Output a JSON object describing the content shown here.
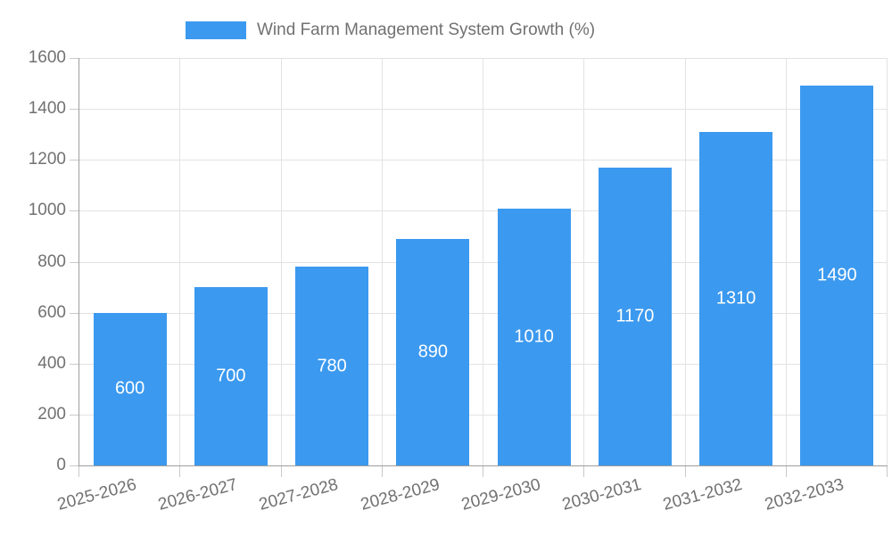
{
  "chart_data": {
    "type": "bar",
    "title": "Wind Farm Management System Growth (%)",
    "categories": [
      "2025-2026",
      "2026-2027",
      "2027-2028",
      "2028-2029",
      "2029-2030",
      "2030-2031",
      "2031-2032",
      "2032-2033"
    ],
    "values": [
      600,
      700,
      780,
      890,
      1010,
      1170,
      1310,
      1490
    ],
    "value_labels": [
      "600",
      "700",
      "780",
      "890",
      "1010",
      "1170",
      "1310",
      "1490"
    ],
    "xlabel": "",
    "ylabel": "",
    "ylim": [
      0,
      1600
    ],
    "yticks": [
      0,
      200,
      400,
      600,
      800,
      1000,
      1200,
      1400,
      1600
    ],
    "grid": true,
    "legend_position": "top",
    "colors": {
      "bar": "#3B99EF",
      "value_label": "#FFFFFF",
      "grid": "#E3E3E3",
      "axis": "#9E9E9E",
      "tick": "#C9C9C9",
      "text": "#717171",
      "background": "#FFFFFF"
    }
  }
}
